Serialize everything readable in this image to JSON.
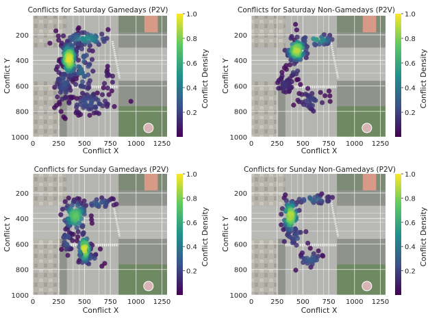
{
  "colorbar": {
    "label": "Conflict Density",
    "ticks": [
      "0.2",
      "0.4",
      "0.6",
      "0.8",
      "1.0"
    ],
    "range": [
      0.0,
      1.0
    ],
    "colormap": [
      "#440154",
      "#3b528b",
      "#21918c",
      "#5ec962",
      "#fde725"
    ]
  },
  "chart_data": [
    {
      "type": "scatter",
      "title": "Conflicts for Saturday Gamedays (P2V)",
      "xlabel": "Conflict X",
      "ylabel": "Conflict Y",
      "xlim": [
        0,
        1300
      ],
      "ylim": [
        1000,
        50
      ],
      "x_ticks": [
        "0",
        "250",
        "500",
        "750",
        "1000",
        "1250"
      ],
      "y_ticks": [
        "200",
        "400",
        "600",
        "800",
        "1000"
      ],
      "grid": true,
      "background": "intersection aerial image",
      "clusters": [
        {
          "cx": 350,
          "cy": 390,
          "sx": 40,
          "sy": 70,
          "n": 140,
          "density": 0.95
        },
        {
          "cx": 520,
          "cy": 230,
          "sx": 120,
          "sy": 30,
          "n": 55,
          "density": 0.5
        },
        {
          "cx": 300,
          "cy": 580,
          "sx": 50,
          "sy": 90,
          "n": 60,
          "density": 0.25
        },
        {
          "cx": 480,
          "cy": 460,
          "sx": 60,
          "sy": 120,
          "n": 55,
          "density": 0.35
        },
        {
          "cx": 540,
          "cy": 730,
          "sx": 130,
          "sy": 50,
          "n": 65,
          "density": 0.25
        },
        {
          "cx": 730,
          "cy": 560,
          "sx": 60,
          "sy": 60,
          "n": 12,
          "density": 0.1
        }
      ]
    },
    {
      "type": "scatter",
      "title": "Conflicts for Saturday Non-Gamedays (P2V)",
      "xlabel": "Conflict X",
      "ylabel": "Conflict Y",
      "xlim": [
        0,
        1300
      ],
      "ylim": [
        1000,
        50
      ],
      "x_ticks": [
        "0",
        "250",
        "500",
        "750",
        "1000",
        "1250"
      ],
      "y_ticks": [
        "200",
        "400",
        "600",
        "800",
        "1000"
      ],
      "grid": true,
      "background": "intersection aerial image",
      "clusters": [
        {
          "cx": 440,
          "cy": 320,
          "sx": 50,
          "sy": 50,
          "n": 90,
          "density": 0.9
        },
        {
          "cx": 640,
          "cy": 240,
          "sx": 90,
          "sy": 25,
          "n": 30,
          "density": 0.55
        },
        {
          "cx": 330,
          "cy": 590,
          "sx": 50,
          "sy": 50,
          "n": 35,
          "density": 0.15
        },
        {
          "cx": 580,
          "cy": 720,
          "sx": 80,
          "sy": 50,
          "n": 35,
          "density": 0.2
        },
        {
          "cx": 420,
          "cy": 470,
          "sx": 40,
          "sy": 40,
          "n": 10,
          "density": 0.2
        }
      ]
    },
    {
      "type": "scatter",
      "title": "Conflicts for Sunday Gamedays (P2V)",
      "xlabel": "Conflict X",
      "ylabel": "Conflict Y",
      "xlim": [
        0,
        1300
      ],
      "ylim": [
        1000,
        50
      ],
      "x_ticks": [
        "0",
        "250",
        "500",
        "750",
        "1000",
        "1250"
      ],
      "y_ticks": [
        "200",
        "400",
        "600",
        "800",
        "1000"
      ],
      "grid": true,
      "background": "intersection aerial image",
      "clusters": [
        {
          "cx": 410,
          "cy": 380,
          "sx": 60,
          "sy": 60,
          "n": 90,
          "density": 0.75
        },
        {
          "cx": 500,
          "cy": 640,
          "sx": 30,
          "sy": 60,
          "n": 60,
          "density": 0.95
        },
        {
          "cx": 640,
          "cy": 280,
          "sx": 90,
          "sy": 25,
          "n": 25,
          "density": 0.3
        },
        {
          "cx": 330,
          "cy": 570,
          "sx": 25,
          "sy": 60,
          "n": 25,
          "density": 0.3
        },
        {
          "cx": 560,
          "cy": 720,
          "sx": 60,
          "sy": 30,
          "n": 20,
          "density": 0.25
        }
      ]
    },
    {
      "type": "scatter",
      "title": "Conflicts for Sunday Non-Gamedays (P2V)",
      "xlabel": "Conflict X",
      "ylabel": "Conflict Y",
      "xlim": [
        0,
        1300
      ],
      "ylim": [
        1000,
        50
      ],
      "x_ticks": [
        "0",
        "250",
        "500",
        "750",
        "1000",
        "1250"
      ],
      "y_ticks": [
        "200",
        "400",
        "600",
        "800",
        "1000"
      ],
      "grid": true,
      "background": "intersection aerial image",
      "clusters": [
        {
          "cx": 380,
          "cy": 380,
          "sx": 40,
          "sy": 70,
          "n": 80,
          "density": 0.9
        },
        {
          "cx": 600,
          "cy": 250,
          "sx": 110,
          "sy": 20,
          "n": 25,
          "density": 0.35
        },
        {
          "cx": 430,
          "cy": 550,
          "sx": 80,
          "sy": 50,
          "n": 20,
          "density": 0.25
        },
        {
          "cx": 570,
          "cy": 720,
          "sx": 70,
          "sy": 35,
          "n": 25,
          "density": 0.3
        }
      ]
    }
  ]
}
